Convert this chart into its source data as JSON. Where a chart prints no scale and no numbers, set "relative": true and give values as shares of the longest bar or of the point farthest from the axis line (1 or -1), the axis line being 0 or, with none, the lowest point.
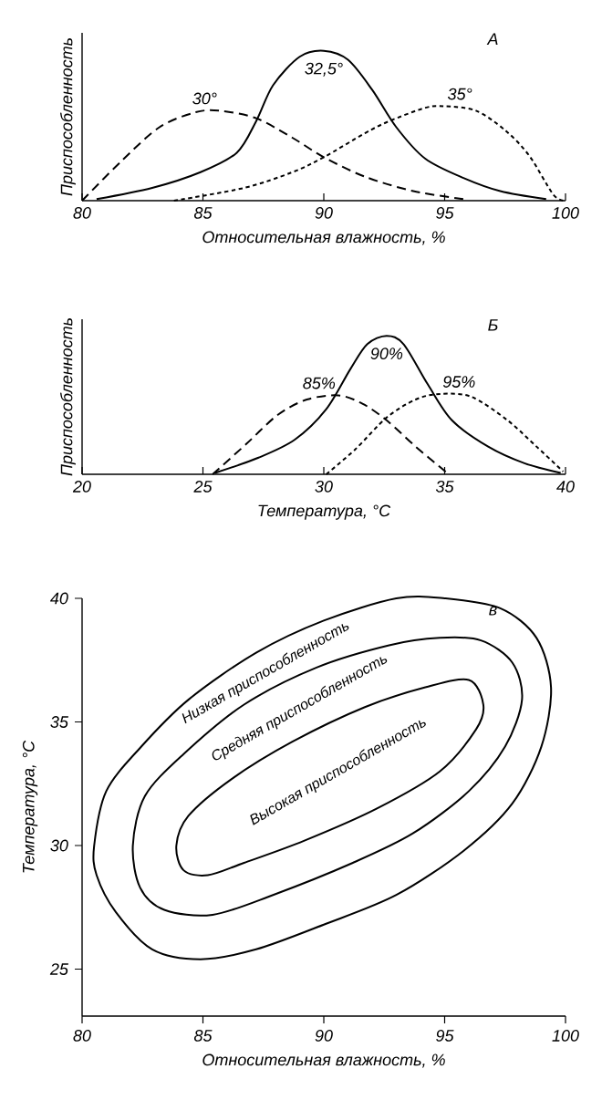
{
  "chart_data": [
    {
      "type": "line",
      "title": "А",
      "xlabel": "Относительная влажность, %",
      "ylabel": "Приспособленность",
      "relative": true,
      "xlim": [
        80,
        100
      ],
      "xticks": [
        80,
        85,
        90,
        95,
        100
      ],
      "series": [
        {
          "name": "30°",
          "color": "#000000",
          "line_style": "dashed",
          "x": [
            80,
            81.6,
            83.2,
            84.7,
            85.7,
            87.2,
            88.7,
            90,
            91.7,
            93.7,
            95.8
          ],
          "values": [
            0,
            0.26,
            0.49,
            0.59,
            0.6,
            0.55,
            0.42,
            0.29,
            0.16,
            0.064,
            0.01
          ]
        },
        {
          "name": "32,5°",
          "color": "#000000",
          "line_style": "solid",
          "x": [
            80.6,
            82.9,
            84.9,
            86.4,
            87.2,
            87.9,
            89,
            90,
            91,
            92,
            93,
            94.2,
            95.8,
            97.3,
            99.2
          ],
          "values": [
            0.01,
            0.085,
            0.19,
            0.32,
            0.53,
            0.77,
            0.96,
            1,
            0.94,
            0.74,
            0.49,
            0.28,
            0.15,
            0.064,
            0.01
          ]
        },
        {
          "name": "35°",
          "color": "#000000",
          "line_style": "dotted",
          "x": [
            83.8,
            86.7,
            88.7,
            90,
            91.7,
            92.7,
            94.2,
            95,
            96.3,
            97.5,
            98.5,
            99.5,
            100
          ],
          "values": [
            0,
            0.085,
            0.19,
            0.29,
            0.45,
            0.53,
            0.62,
            0.63,
            0.6,
            0.47,
            0.3,
            0.04,
            0
          ]
        }
      ]
    },
    {
      "type": "line",
      "title": "Б",
      "xlabel": "Температура, °C",
      "ylabel": "Приспособленность",
      "relative": true,
      "xlim": [
        20,
        40
      ],
      "xticks": [
        20,
        25,
        30,
        35,
        40
      ],
      "series": [
        {
          "name": "85%",
          "color": "#000000",
          "line_style": "dashed",
          "x": [
            25.4,
            26.8,
            28.1,
            29.3,
            30.6,
            31.6,
            32.6,
            33.8,
            35.1
          ],
          "values": [
            0,
            0.22,
            0.43,
            0.54,
            0.57,
            0.51,
            0.39,
            0.2,
            0.01
          ]
        },
        {
          "name": "90%",
          "color": "#000000",
          "line_style": "solid",
          "x": [
            25.5,
            27.3,
            28.8,
            30.1,
            31.1,
            31.8,
            32.6,
            33.3,
            34.3,
            35.3,
            36.8,
            38.3,
            39.8
          ],
          "values": [
            0.01,
            0.12,
            0.25,
            0.47,
            0.76,
            0.94,
            1,
            0.94,
            0.65,
            0.39,
            0.2,
            0.08,
            0.01
          ]
        },
        {
          "name": "95%",
          "color": "#000000",
          "line_style": "dotted",
          "x": [
            30.1,
            31.3,
            32.6,
            33.8,
            34.8,
            36.1,
            37.6,
            38.8,
            39.9
          ],
          "values": [
            0,
            0.18,
            0.41,
            0.54,
            0.58,
            0.56,
            0.39,
            0.2,
            0.02
          ]
        }
      ]
    },
    {
      "type": "line",
      "title": "в",
      "xlabel": "Относительная влажность, %",
      "ylabel": "Температура, °C",
      "xlim": [
        80,
        100
      ],
      "xticks": [
        80,
        85,
        90,
        95,
        100
      ],
      "ylim": [
        23.1,
        40
      ],
      "yticks": [
        25,
        30,
        35,
        40
      ],
      "annotations": [
        "Низкая приспособленность",
        "Средняя приспособленность",
        "Высокая приспособленность"
      ]
    }
  ]
}
